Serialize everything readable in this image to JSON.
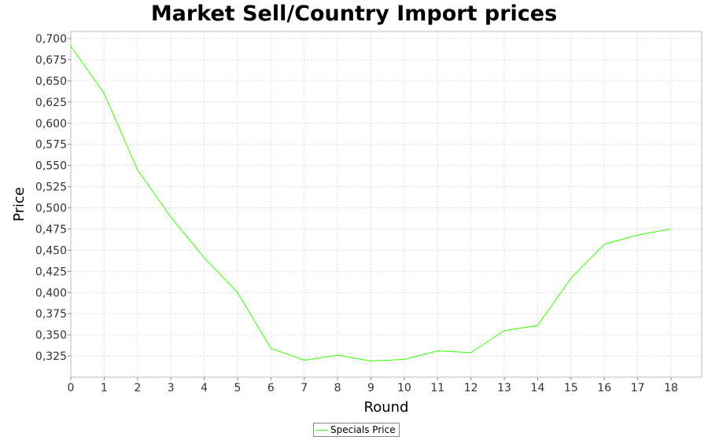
{
  "chart_data": {
    "type": "line",
    "title": "Market Sell/Country Import prices",
    "xlabel": "Round",
    "ylabel": "Price",
    "xlim": [
      0,
      18.92
    ],
    "ylim": [
      0.3,
      0.7084
    ],
    "xticks": [
      0,
      1,
      2,
      3,
      4,
      5,
      6,
      7,
      8,
      9,
      10,
      11,
      12,
      13,
      14,
      15,
      16,
      17,
      18
    ],
    "yticks": [
      "0,325",
      "0,350",
      "0,375",
      "0,400",
      "0,425",
      "0,450",
      "0,475",
      "0,500",
      "0,525",
      "0,550",
      "0,575",
      "0,600",
      "0,625",
      "0,650",
      "0,675",
      "0,700"
    ],
    "ytick_values": [
      0.325,
      0.35,
      0.375,
      0.4,
      0.425,
      0.45,
      0.475,
      0.5,
      0.525,
      0.55,
      0.575,
      0.6,
      0.625,
      0.65,
      0.675,
      0.7
    ],
    "grid": true,
    "legend": "bottom-center",
    "series": [
      {
        "name": "Specials Price",
        "color": "#33ff00",
        "x": [
          0,
          1,
          2,
          3,
          4,
          5,
          6,
          7,
          8,
          9,
          10,
          11,
          12,
          13,
          14,
          15,
          16,
          17,
          18
        ],
        "y": [
          0.691,
          0.635,
          0.545,
          0.489,
          0.441,
          0.4,
          0.334,
          0.32,
          0.326,
          0.319,
          0.321,
          0.331,
          0.329,
          0.355,
          0.361,
          0.417,
          0.457,
          0.468,
          0.475
        ]
      }
    ]
  }
}
